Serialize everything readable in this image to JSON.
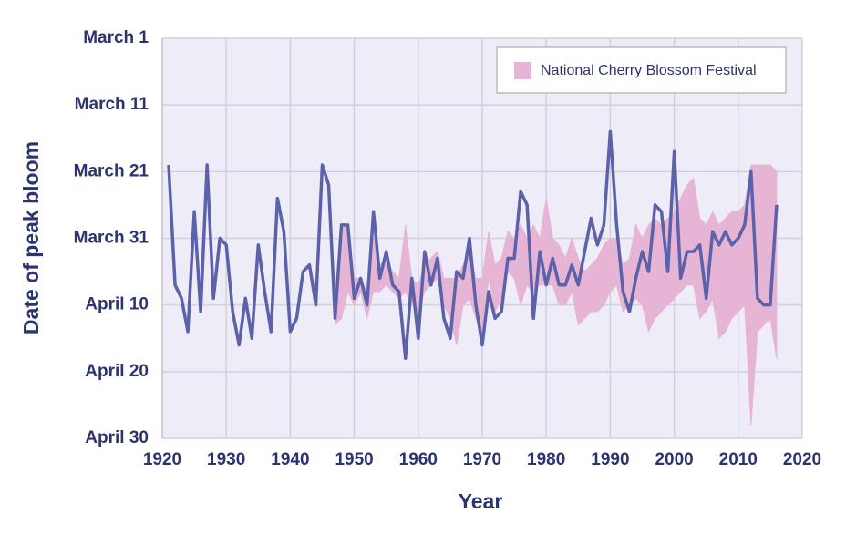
{
  "chart_data": {
    "type": "line",
    "x_label": "Year",
    "y_label": "Date of peak bloom",
    "x": [
      1921,
      1922,
      1923,
      1924,
      1925,
      1926,
      1927,
      1928,
      1929,
      1930,
      1931,
      1932,
      1933,
      1934,
      1935,
      1936,
      1937,
      1938,
      1939,
      1940,
      1941,
      1942,
      1943,
      1944,
      1945,
      1946,
      1947,
      1948,
      1949,
      1950,
      1951,
      1952,
      1953,
      1954,
      1955,
      1956,
      1957,
      1958,
      1959,
      1960,
      1961,
      1962,
      1963,
      1964,
      1965,
      1966,
      1967,
      1968,
      1969,
      1970,
      1971,
      1972,
      1973,
      1974,
      1975,
      1976,
      1977,
      1978,
      1979,
      1980,
      1981,
      1982,
      1983,
      1984,
      1985,
      1986,
      1987,
      1988,
      1989,
      1990,
      1991,
      1992,
      1993,
      1994,
      1995,
      1996,
      1997,
      1998,
      1999,
      2000,
      2001,
      2002,
      2003,
      2004,
      2005,
      2006,
      2007,
      2008,
      2009,
      2010,
      2011,
      2012,
      2013,
      2014,
      2015,
      2016
    ],
    "xlim": [
      1920,
      2020
    ],
    "xticks": [
      1920,
      1930,
      1940,
      1950,
      1960,
      1970,
      1980,
      1990,
      2000,
      2010,
      2020
    ],
    "ylim": [
      60,
      0
    ],
    "yticks": [
      {
        "value": 0,
        "label": "March 1"
      },
      {
        "value": 10,
        "label": "March 11"
      },
      {
        "value": 20,
        "label": "March 21"
      },
      {
        "value": 30,
        "label": "March 31"
      },
      {
        "value": 40,
        "label": "April 10"
      },
      {
        "value": 50,
        "label": "April 20"
      },
      {
        "value": 60,
        "label": "April 30"
      }
    ],
    "grid": true,
    "legend": "upper right",
    "series": [
      {
        "color": "#5b62a9",
        "values": [
          19,
          37,
          39,
          44,
          26,
          41,
          19,
          39,
          30,
          31,
          41,
          46,
          39,
          45,
          31,
          38,
          44,
          24,
          29,
          44,
          42,
          35,
          34,
          40,
          19,
          22,
          42,
          28,
          28,
          39,
          36,
          40,
          26,
          36,
          32,
          37,
          38,
          48,
          36,
          45,
          32,
          37,
          33,
          42,
          45,
          35,
          36,
          30,
          40,
          46,
          38,
          42,
          41,
          33,
          33,
          23,
          25,
          42,
          32,
          37,
          33,
          37,
          37,
          34,
          37,
          32,
          27,
          31,
          28,
          14,
          28,
          38,
          41,
          36,
          32,
          35,
          25,
          26,
          35,
          17,
          36,
          32,
          32,
          31,
          39,
          29,
          31,
          29,
          31,
          30,
          28,
          20,
          39,
          40,
          40,
          25
        ]
      }
    ],
    "band": {
      "name": "National Cherry Blossom Festival",
      "color": "#e6b5d5",
      "lower": [
        null,
        null,
        null,
        null,
        null,
        null,
        null,
        null,
        null,
        null,
        null,
        null,
        null,
        null,
        null,
        null,
        null,
        null,
        null,
        null,
        null,
        null,
        null,
        null,
        null,
        null,
        42,
        28,
        28,
        36,
        36,
        38,
        30,
        34,
        33,
        35,
        36,
        28,
        36,
        37,
        34,
        33,
        32,
        36,
        36,
        36,
        34,
        32,
        36,
        36,
        29,
        34,
        33,
        29,
        30,
        28,
        30,
        28,
        30,
        24,
        30,
        31,
        33,
        30,
        33,
        35,
        34,
        33,
        31,
        30,
        30,
        34,
        33,
        28,
        30,
        28,
        27,
        28,
        27,
        26,
        24,
        22,
        21,
        27,
        28,
        26,
        28,
        27,
        26,
        26,
        25,
        19,
        19,
        19,
        19,
        20
      ],
      "upper": [
        null,
        null,
        null,
        null,
        null,
        null,
        null,
        null,
        null,
        null,
        null,
        null,
        null,
        null,
        null,
        null,
        null,
        null,
        null,
        null,
        null,
        null,
        null,
        null,
        null,
        null,
        43,
        42,
        38,
        40,
        38,
        42,
        38,
        38,
        37,
        38,
        39,
        38,
        40,
        41,
        38,
        37,
        36,
        40,
        42,
        46,
        40,
        39,
        42,
        44,
        36,
        41,
        39,
        35,
        36,
        40,
        37,
        38,
        37,
        37,
        37,
        40,
        40,
        38,
        43,
        42,
        41,
        41,
        40,
        38,
        37,
        41,
        40,
        39,
        40,
        44,
        42,
        41,
        40,
        39,
        38,
        37,
        37,
        42,
        41,
        39,
        45,
        44,
        42,
        41,
        40,
        58,
        44,
        43,
        42,
        48
      ]
    }
  }
}
